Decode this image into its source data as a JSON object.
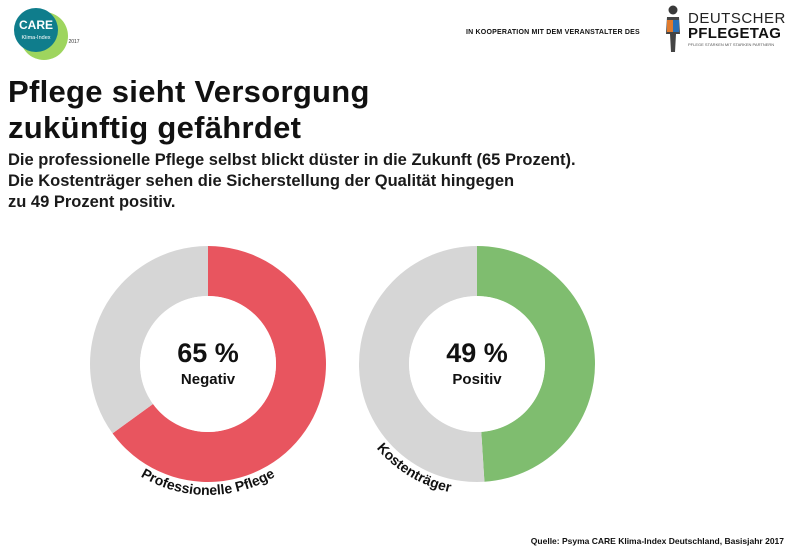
{
  "header": {
    "left_logo": {
      "title": "CARE",
      "subtitle": "Klima-Index",
      "year": "2017"
    },
    "cooperation_text": "IN KOOPERATION MIT DEM VERANSTALTER DES",
    "right_logo": {
      "line1": "DEUTSCHER",
      "line2": "PFLEGETAG",
      "tagline": "PFLEGE STÄRKEN MIT STARKEN PARTNERN"
    }
  },
  "title_lines": [
    "Pflege sieht Versorgung",
    "zukünftig gefährdet"
  ],
  "subtitle_lines": [
    "Die professionelle Pflege selbst blickt düster in die Zukunft (65 Prozent).",
    "Die Kostenträger sehen die Sicherstellung der Qualität hingegen",
    "zu 49 Prozent positiv."
  ],
  "chart_data": [
    {
      "type": "pie",
      "donut": true,
      "category": "Professionelle Pflege",
      "center_value": "65 %",
      "center_label": "Negativ",
      "slices": [
        {
          "label": "Negativ",
          "value": 65,
          "color": "#e8555f"
        },
        {
          "label": "",
          "value": 35,
          "color": "#d6d6d6"
        }
      ]
    },
    {
      "type": "pie",
      "donut": true,
      "category": "Kostenträger",
      "center_value": "49 %",
      "center_label": "Positiv",
      "slices": [
        {
          "label": "Positiv",
          "value": 49,
          "color": "#7fbd6f"
        },
        {
          "label": "",
          "value": 51,
          "color": "#d6d6d6"
        }
      ]
    }
  ],
  "source": "Quelle: Psyma CARE Klima-Index Deutschland, Basisjahr 2017"
}
